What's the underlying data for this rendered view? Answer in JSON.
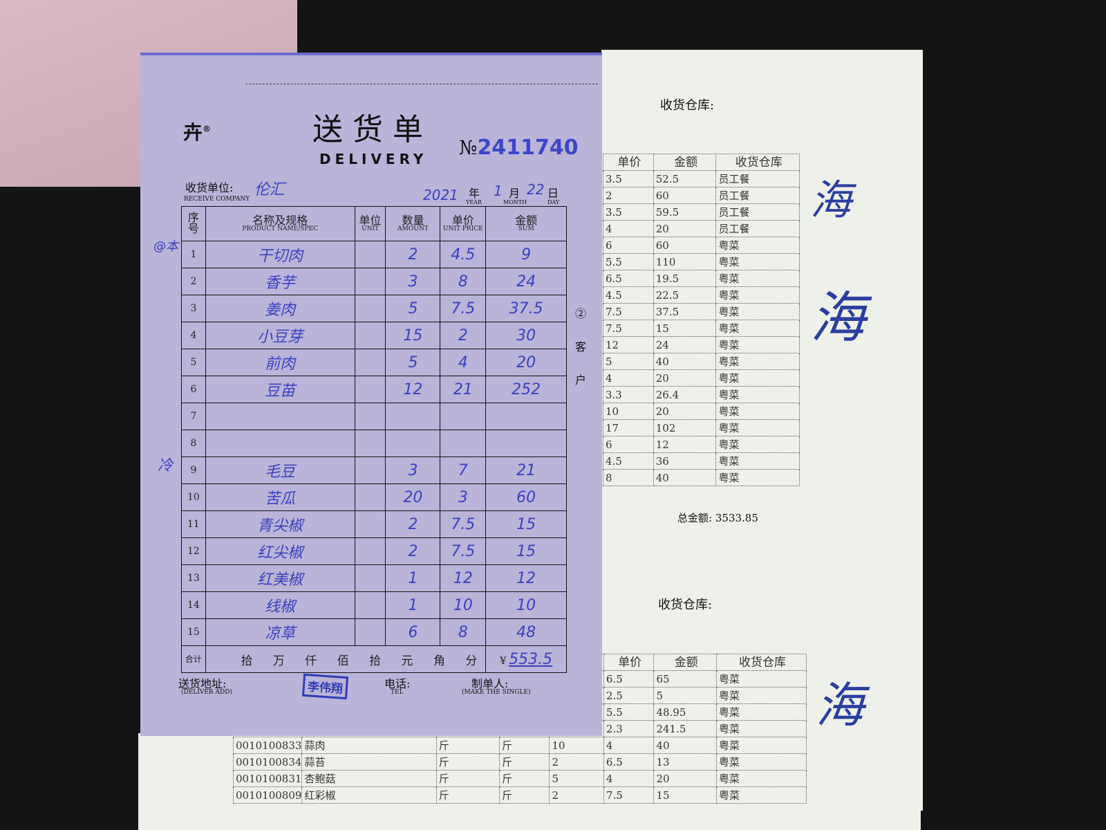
{
  "delivery_form": {
    "brand_mark": "®",
    "title_cn": "送货单",
    "title_en": "DELIVERY",
    "number_label": "№",
    "number": "2411740",
    "receive_company_label": "收货单位:",
    "receive_company_label_en": "RECEIVE COMPANY",
    "receive_company": "伦汇",
    "date": {
      "year": "2021",
      "year_label": "年",
      "year_en": "YEAR",
      "month": "1",
      "month_label": "月",
      "month_en": "MONTH",
      "day": "22",
      "day_label": "日",
      "day_en": "DAY"
    },
    "columns": [
      {
        "cn": "序号",
        "en": ""
      },
      {
        "cn": "名称及规格",
        "en": "PRODUCT NAME/SPEC"
      },
      {
        "cn": "单位",
        "en": "UNIT"
      },
      {
        "cn": "数量",
        "en": "AMOUNT"
      },
      {
        "cn": "单价",
        "en": "UNIT PRICE"
      },
      {
        "cn": "金额",
        "en": "SUM"
      }
    ],
    "rows": [
      {
        "no": "1",
        "name": "干切肉",
        "unit": "",
        "qty": "2",
        "price": "4.5",
        "sum": "9"
      },
      {
        "no": "2",
        "name": "香芋",
        "unit": "",
        "qty": "3",
        "price": "8",
        "sum": "24"
      },
      {
        "no": "3",
        "name": "姜肉",
        "unit": "",
        "qty": "5",
        "price": "7.5",
        "sum": "37.5"
      },
      {
        "no": "4",
        "name": "小豆芽",
        "unit": "",
        "qty": "15",
        "price": "2",
        "sum": "30"
      },
      {
        "no": "5",
        "name": "前肉",
        "unit": "",
        "qty": "5",
        "price": "4",
        "sum": "20"
      },
      {
        "no": "6",
        "name": "豆苗",
        "unit": "",
        "qty": "12",
        "price": "21",
        "sum": "252"
      },
      {
        "no": "7",
        "name": "",
        "unit": "",
        "qty": "",
        "price": "",
        "sum": ""
      },
      {
        "no": "8",
        "name": "",
        "unit": "",
        "qty": "",
        "price": "",
        "sum": ""
      },
      {
        "no": "9",
        "name": "毛豆",
        "unit": "",
        "qty": "3",
        "price": "7",
        "sum": "21"
      },
      {
        "no": "10",
        "name": "苦瓜",
        "unit": "",
        "qty": "20",
        "price": "3",
        "sum": "60"
      },
      {
        "no": "11",
        "name": "青尖椒",
        "unit": "",
        "qty": "2",
        "price": "7.5",
        "sum": "15"
      },
      {
        "no": "12",
        "name": "红尖椒",
        "unit": "",
        "qty": "2",
        "price": "7.5",
        "sum": "15"
      },
      {
        "no": "13",
        "name": "红美椒",
        "unit": "",
        "qty": "1",
        "price": "12",
        "sum": "12"
      },
      {
        "no": "14",
        "name": "线椒",
        "unit": "",
        "qty": "1",
        "price": "10",
        "sum": "10"
      },
      {
        "no": "15",
        "name": "凉草",
        "unit": "",
        "qty": "6",
        "price": "8",
        "sum": "48"
      }
    ],
    "total_label": "合计",
    "total_units": "拾 万 仟 佰 拾 元 角 分",
    "total_currency": "¥",
    "total_value": "553.5",
    "side_notes": [
      "@本",
      "冷"
    ],
    "copy_marker": "② 客 户",
    "deliver_address_label": "送货地址:",
    "deliver_address_label_en": "(DELIVER ADD)",
    "stamp": "李伟翔",
    "tel_label": "电话:",
    "tel_label_en": "TEL",
    "maker_label": "制单人:",
    "maker_label_en": "(MAKE THE SINGLE)"
  },
  "receipt_top": {
    "warehouse_label": "收货仓库:",
    "columns": [
      "单价",
      "金额",
      "收货仓库"
    ],
    "rows": [
      [
        "3.5",
        "52.5",
        "员工餐"
      ],
      [
        "2",
        "60",
        "员工餐"
      ],
      [
        "3.5",
        "59.5",
        "员工餐"
      ],
      [
        "4",
        "20",
        "员工餐"
      ],
      [
        "6",
        "60",
        "粤菜"
      ],
      [
        "5.5",
        "110",
        "粤菜"
      ],
      [
        "6.5",
        "19.5",
        "粤菜"
      ],
      [
        "4.5",
        "22.5",
        "粤菜"
      ],
      [
        "7.5",
        "37.5",
        "粤菜"
      ],
      [
        "7.5",
        "15",
        "粤菜"
      ],
      [
        "12",
        "24",
        "粤菜"
      ],
      [
        "5",
        "40",
        "粤菜"
      ],
      [
        "4",
        "20",
        "粤菜"
      ],
      [
        "3.3",
        "26.4",
        "粤菜"
      ],
      [
        "10",
        "20",
        "粤菜"
      ],
      [
        "17",
        "102",
        "粤菜"
      ],
      [
        "6",
        "12",
        "粤菜"
      ],
      [
        "4.5",
        "36",
        "粤菜"
      ],
      [
        "8",
        "40",
        "粤菜"
      ]
    ],
    "total_label": "总金额:",
    "total": "3533.85"
  },
  "receipt_bottom": {
    "warehouse_label": "收货仓库:",
    "columns": [
      "单价",
      "金额",
      "收货仓库"
    ],
    "rows": [
      {
        "code": "",
        "name": "",
        "unit": "",
        "unit2": "",
        "qty": "",
        "price": "6.5",
        "sum": "65",
        "wh": "粤菜"
      },
      {
        "code": "",
        "name": "",
        "unit": "",
        "unit2": "",
        "qty": "",
        "price": "2.5",
        "sum": "5",
        "wh": "粤菜"
      },
      {
        "code": "",
        "name": "",
        "unit": "",
        "unit2": "",
        "qty": "",
        "price": "5.5",
        "sum": "48.95",
        "wh": "粤菜"
      },
      {
        "code": "",
        "name": "",
        "unit": "",
        "unit2": "",
        "qty": "",
        "price": "2.3",
        "sum": "241.5",
        "wh": "粤菜"
      },
      {
        "code": "0010100833",
        "name": "蒜肉",
        "unit": "斤",
        "unit2": "斤",
        "qty": "10",
        "price": "4",
        "sum": "40",
        "wh": "粤菜"
      },
      {
        "code": "0010100834",
        "name": "蒜苔",
        "unit": "斤",
        "unit2": "斤",
        "qty": "2",
        "price": "6.5",
        "sum": "13",
        "wh": "粤菜"
      },
      {
        "code": "0010100831",
        "name": "杏鲍菇",
        "unit": "斤",
        "unit2": "斤",
        "qty": "5",
        "price": "4",
        "sum": "20",
        "wh": "粤菜"
      },
      {
        "code": "0010100809",
        "name": "红彩椒",
        "unit": "斤",
        "unit2": "斤",
        "qty": "2",
        "price": "7.5",
        "sum": "15",
        "wh": "粤菜"
      }
    ]
  },
  "signature": "海"
}
